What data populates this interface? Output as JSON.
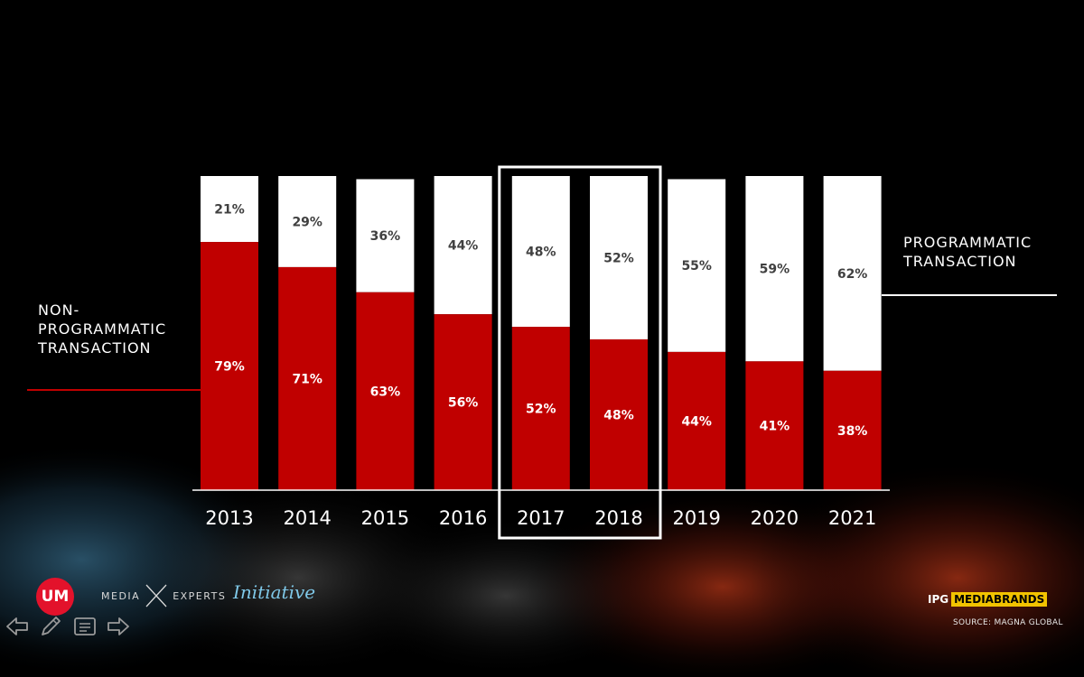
{
  "chart_data": {
    "type": "bar",
    "stacked": true,
    "categories": [
      "2013",
      "2014",
      "2015",
      "2016",
      "2017",
      "2018",
      "2019",
      "2020",
      "2021"
    ],
    "series": [
      {
        "name": "NON-PROGRAMMATIC TRANSACTION",
        "values": [
          79,
          71,
          63,
          56,
          52,
          48,
          44,
          41,
          38
        ],
        "labels": [
          "79%",
          "71%",
          "63%",
          "56%",
          "52%",
          "48%",
          "44%",
          "41%",
          "38%"
        ],
        "color": "#c00000"
      },
      {
        "name": "PROGRAMMATIC TRANSACTION",
        "values": [
          21,
          29,
          36,
          44,
          48,
          52,
          55,
          59,
          62
        ],
        "labels": [
          "21%",
          "29%",
          "36%",
          "44%",
          "48%",
          "52%",
          "55%",
          "59%",
          "62%"
        ],
        "color": "#ffffff"
      }
    ],
    "ylim": [
      0,
      100
    ],
    "highlighted_categories": [
      "2017",
      "2018"
    ],
    "grid": false,
    "legend": "labels beside chart (left: non-programmatic, right: programmatic)"
  },
  "labels": {
    "programmatic": "PROGRAMMATIC\nTRANSACTION",
    "non_programmatic": "NON-\nPROGRAMMATIC\nTRANSACTION"
  },
  "logos": {
    "um": "UM",
    "mediaexperts_left": "MEDIA",
    "mediaexperts_right": "EXPERTS",
    "initiative": "Initiative",
    "ipg": "IPG",
    "mediabrands": "MEDIABRANDS"
  },
  "source": "SOURCE: MAGNA GLOBAL",
  "icons": {
    "prev": "arrow-left-icon",
    "pen": "pen-icon",
    "notes": "notes-icon",
    "next": "arrow-right-icon"
  },
  "colors": {
    "background": "#000000",
    "non_programmatic": "#c00000",
    "programmatic": "#ffffff",
    "accent_yellow": "#f2c300",
    "label_dark": "#404040"
  }
}
